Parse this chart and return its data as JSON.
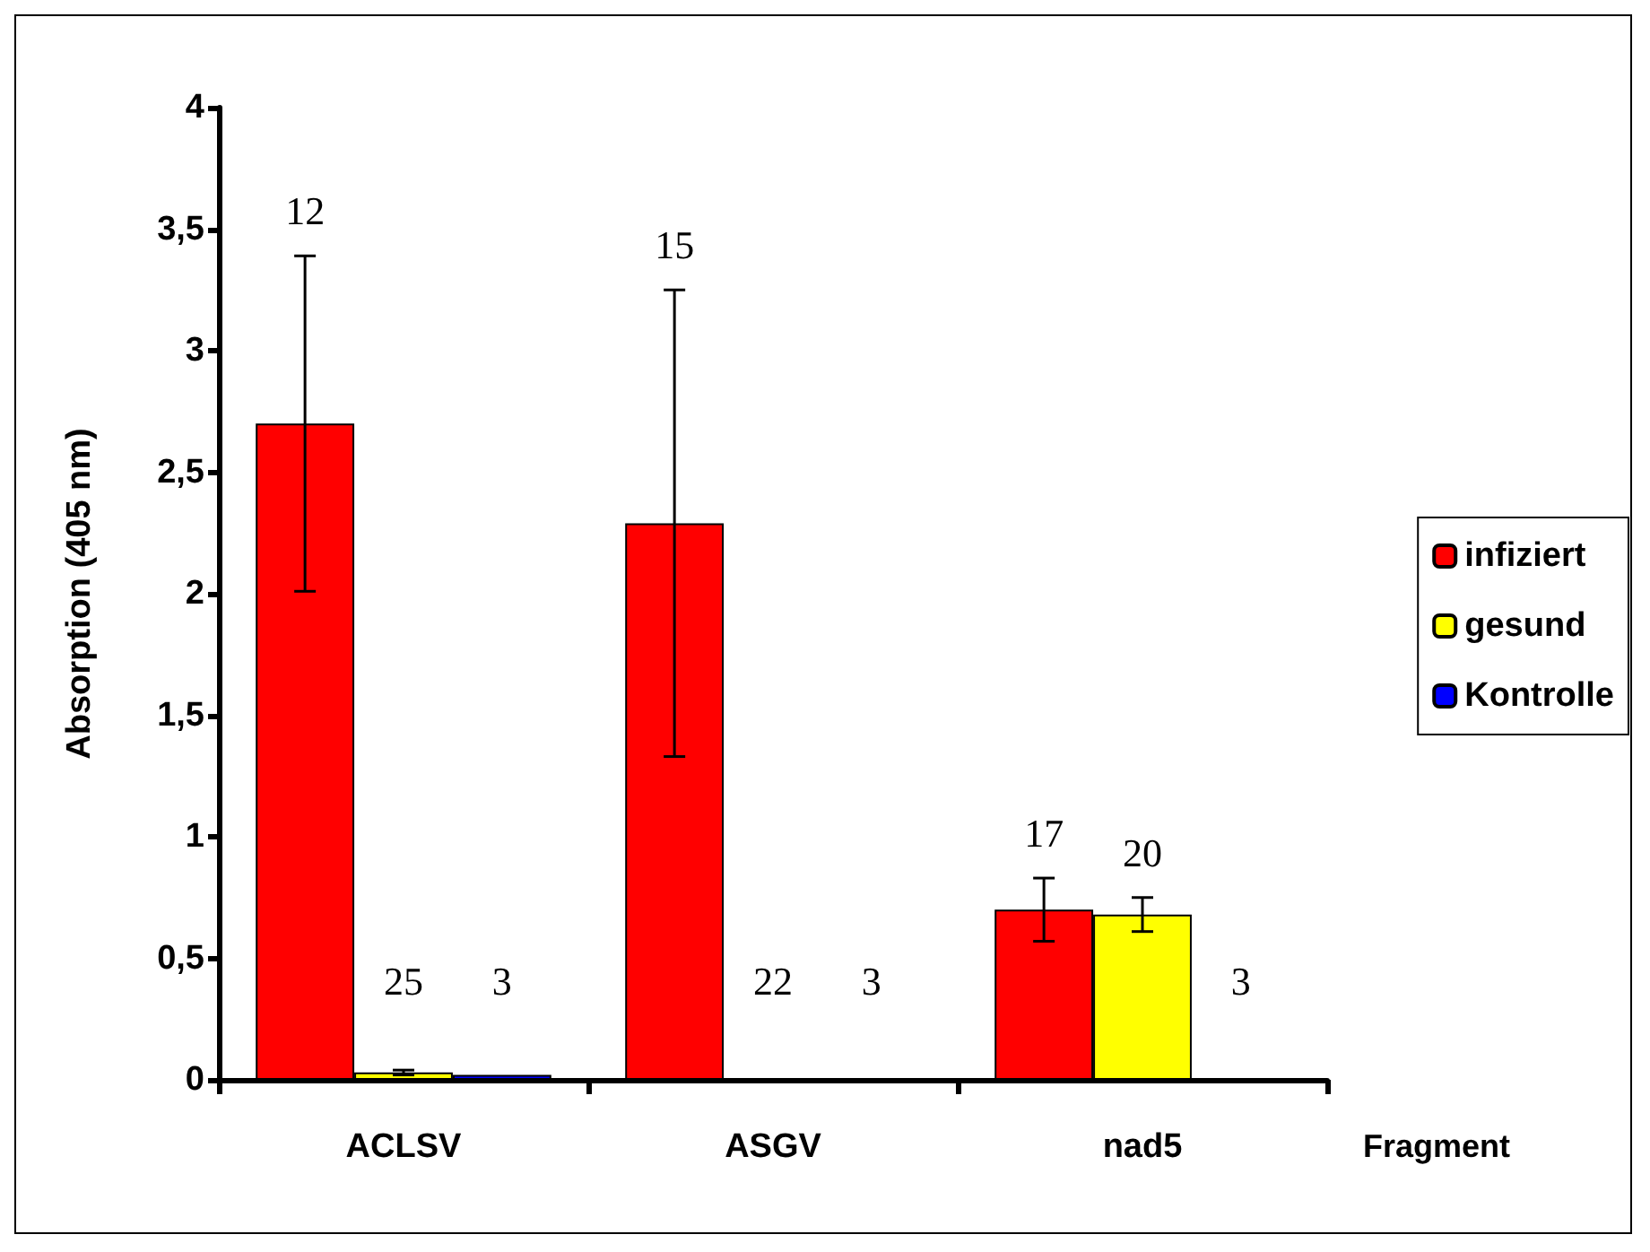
{
  "chart_data": {
    "type": "bar",
    "xlabel": "Fragment",
    "ylabel": "Absorption (405 nm)",
    "categories": [
      "ACLSV",
      "ASGV",
      "nad5"
    ],
    "series": [
      {
        "name": "infiziert",
        "color": "#ff0000",
        "values": [
          2.7,
          2.29,
          0.7
        ],
        "errors": [
          0.69,
          0.96,
          0.13
        ]
      },
      {
        "name": "gesund",
        "color": "#ffff00",
        "values": [
          0.03,
          0,
          0.68
        ],
        "errors": [
          0.01,
          null,
          0.07
        ]
      },
      {
        "name": "Kontrolle",
        "color": "#0000ff",
        "values": [
          0.02,
          0,
          0
        ],
        "errors": [
          null,
          null,
          null
        ]
      }
    ],
    "annotations": [
      "12",
      "25",
      "3",
      "15",
      "22",
      "3",
      "17",
      "20",
      "3"
    ],
    "ylim": [
      0,
      4
    ],
    "yticks": [
      0,
      {
        "value": 0.5,
        "label": "0,5"
      },
      1,
      {
        "value": 1.5,
        "label": "1,5"
      },
      2,
      {
        "value": 2.5,
        "label": "2,5"
      },
      3,
      {
        "value": 3.5,
        "label": "3,5"
      },
      4
    ],
    "grid": false,
    "legend": "right"
  }
}
